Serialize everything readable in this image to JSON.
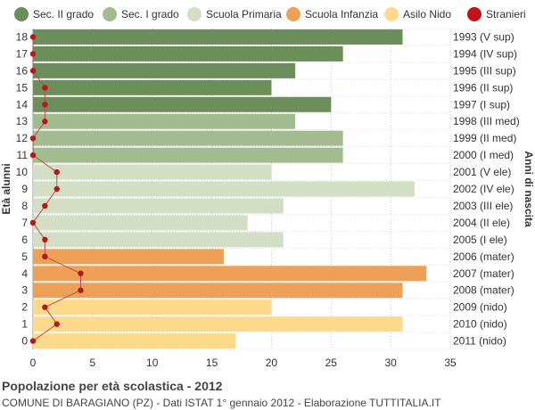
{
  "legend": [
    {
      "label": "Sec. II grado",
      "color": "#6b8e5a"
    },
    {
      "label": "Sec. I grado",
      "color": "#a3bc8f"
    },
    {
      "label": "Scuola Primaria",
      "color": "#d4dec5"
    },
    {
      "label": "Scuola Infanzia",
      "color": "#eea057"
    },
    {
      "label": "Asilo Nido",
      "color": "#fdd98b"
    },
    {
      "label": "Stranieri",
      "color": "#c0131a"
    }
  ],
  "chart_data": {
    "type": "bar",
    "orientation": "horizontal",
    "title": "Popolazione per età scolastica - 2012",
    "subtitle": "COMUNE DI BARAGIANO (PZ) - Dati ISTAT 1° gennaio 2012 - Elaborazione TUTTITALIA.IT",
    "ylabel": "Età alunni",
    "ylabel_right": "Anni di nascita",
    "xlim": [
      0,
      35
    ],
    "xticks": [
      0,
      5,
      10,
      15,
      20,
      25,
      30,
      35
    ],
    "grid": true,
    "legend_position": "top",
    "ages": [
      18,
      17,
      16,
      15,
      14,
      13,
      12,
      11,
      10,
      9,
      8,
      7,
      6,
      5,
      4,
      3,
      2,
      1,
      0
    ],
    "birth_years": [
      "1993 (V sup)",
      "1994 (IV sup)",
      "1995 (III sup)",
      "1996 (II sup)",
      "1997 (I sup)",
      "1998 (III med)",
      "1999 (II med)",
      "2000 (I med)",
      "2001 (V ele)",
      "2002 (IV ele)",
      "2003 (III ele)",
      "2004 (II ele)",
      "2005 (I ele)",
      "2006 (mater)",
      "2007 (mater)",
      "2008 (mater)",
      "2009 (nido)",
      "2010 (nido)",
      "2011 (nido)"
    ],
    "values": [
      31,
      26,
      22,
      20,
      25,
      22,
      26,
      26,
      20,
      32,
      21,
      18,
      21,
      16,
      33,
      31,
      20,
      31,
      17
    ],
    "categories_group": [
      0,
      0,
      0,
      0,
      0,
      1,
      1,
      1,
      2,
      2,
      2,
      2,
      2,
      3,
      3,
      3,
      4,
      4,
      4
    ],
    "stranieri": [
      0,
      0,
      0,
      1,
      1,
      1,
      0,
      0,
      2,
      2,
      1,
      0,
      1,
      1,
      4,
      4,
      1,
      2,
      0
    ]
  }
}
